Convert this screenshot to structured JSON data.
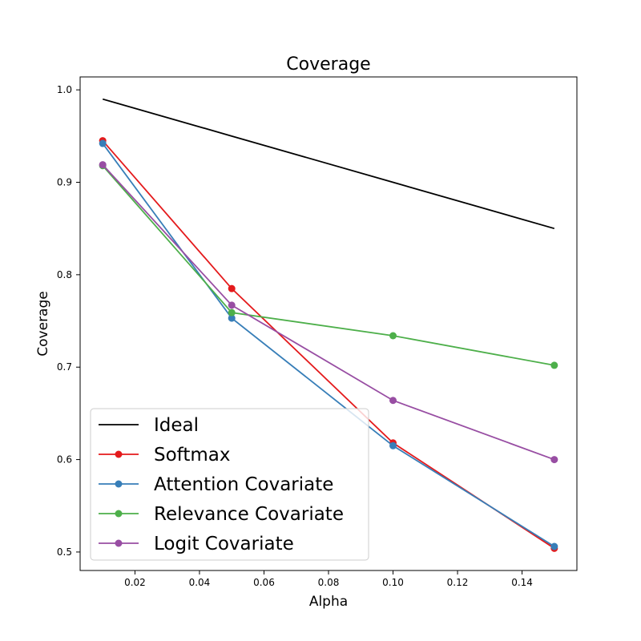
{
  "chart_data": {
    "type": "line",
    "title": "Coverage",
    "xlabel": "Alpha",
    "ylabel": "Coverage",
    "xlim": [
      0.003,
      0.157
    ],
    "ylim": [
      0.48,
      1.014
    ],
    "xticks": [
      0.02,
      0.04,
      0.06,
      0.08,
      0.1,
      0.12,
      0.14
    ],
    "xtick_labels": [
      "0.02",
      "0.04",
      "0.06",
      "0.08",
      "0.10",
      "0.12",
      "0.14"
    ],
    "yticks": [
      0.5,
      0.6,
      0.7,
      0.8,
      0.9,
      1.0
    ],
    "ytick_labels": [
      "0.5",
      "0.6",
      "0.7",
      "0.8",
      "0.9",
      "1.0"
    ],
    "grid": false,
    "legend_position": "lower-left",
    "x": [
      0.01,
      0.05,
      0.1,
      0.15
    ],
    "series": [
      {
        "name": "Ideal",
        "color": "#000000",
        "marker": false,
        "values": [
          0.99,
          0.95,
          0.9,
          0.85
        ]
      },
      {
        "name": "Softmax",
        "color": "#e41a1c",
        "marker": true,
        "values": [
          0.945,
          0.785,
          0.618,
          0.504
        ]
      },
      {
        "name": "Attention Covariate",
        "color": "#377eb8",
        "marker": true,
        "values": [
          0.942,
          0.753,
          0.615,
          0.506
        ]
      },
      {
        "name": "Relevance Covariate",
        "color": "#4daf4a",
        "marker": true,
        "values": [
          0.918,
          0.759,
          0.734,
          0.702
        ]
      },
      {
        "name": "Logit Covariate",
        "color": "#984ea3",
        "marker": true,
        "values": [
          0.919,
          0.767,
          0.664,
          0.6
        ]
      }
    ]
  }
}
